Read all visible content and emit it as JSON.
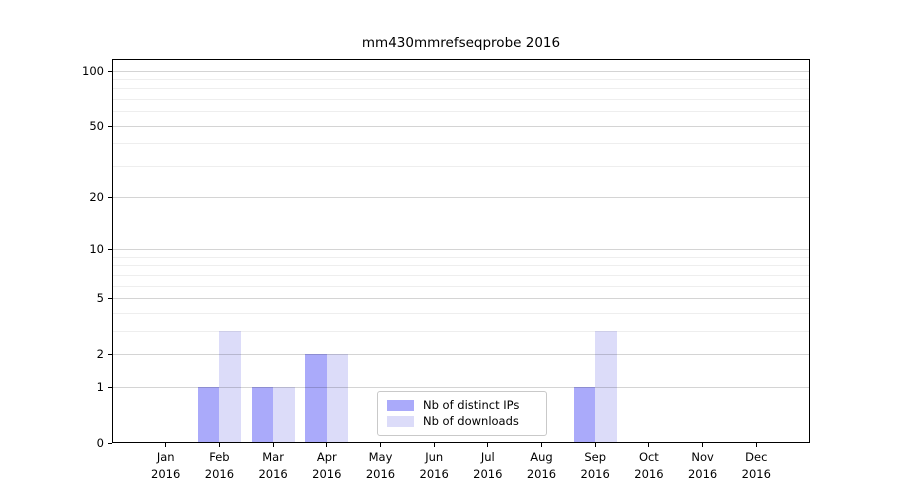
{
  "chart_data": {
    "type": "bar",
    "title": "mm430mmrefseqprobe 2016",
    "x_tick_months": [
      "Jan",
      "Feb",
      "Mar",
      "Apr",
      "May",
      "Jun",
      "Jul",
      "Aug",
      "Sep",
      "Oct",
      "Nov",
      "Dec"
    ],
    "x_tick_year": "2016",
    "categories": [
      "Jan 2016",
      "Feb 2016",
      "Mar 2016",
      "Apr 2016",
      "May 2016",
      "Jun 2016",
      "Jul 2016",
      "Aug 2016",
      "Sep 2016",
      "Oct 2016",
      "Nov 2016",
      "Dec 2016"
    ],
    "series": [
      {
        "name": "Nb of distinct IPs",
        "color": "#aaaafa",
        "values": [
          0,
          1,
          1,
          2,
          0,
          0,
          0,
          0,
          1,
          0,
          0,
          0
        ]
      },
      {
        "name": "Nb of downloads",
        "color": "#dcdcf9",
        "values": [
          0,
          3,
          1,
          2,
          0,
          0,
          0,
          0,
          3,
          0,
          0,
          0
        ]
      }
    ],
    "yscale": "log1p",
    "ylim": [
      0,
      116
    ],
    "yticks": [
      0,
      1,
      2,
      5,
      10,
      20,
      50,
      100
    ],
    "yticks_minor": [
      3,
      4,
      6,
      7,
      8,
      9,
      30,
      40,
      60,
      70,
      80,
      90
    ],
    "grid": true,
    "legend_position": "inside-lower-center",
    "colors": {
      "axis": "#000000",
      "major_grid": "rgba(0,0,0,0.17)",
      "minor_grid": "rgba(0,0,0,0.065)",
      "legend_border": "#c9c9c9"
    }
  }
}
